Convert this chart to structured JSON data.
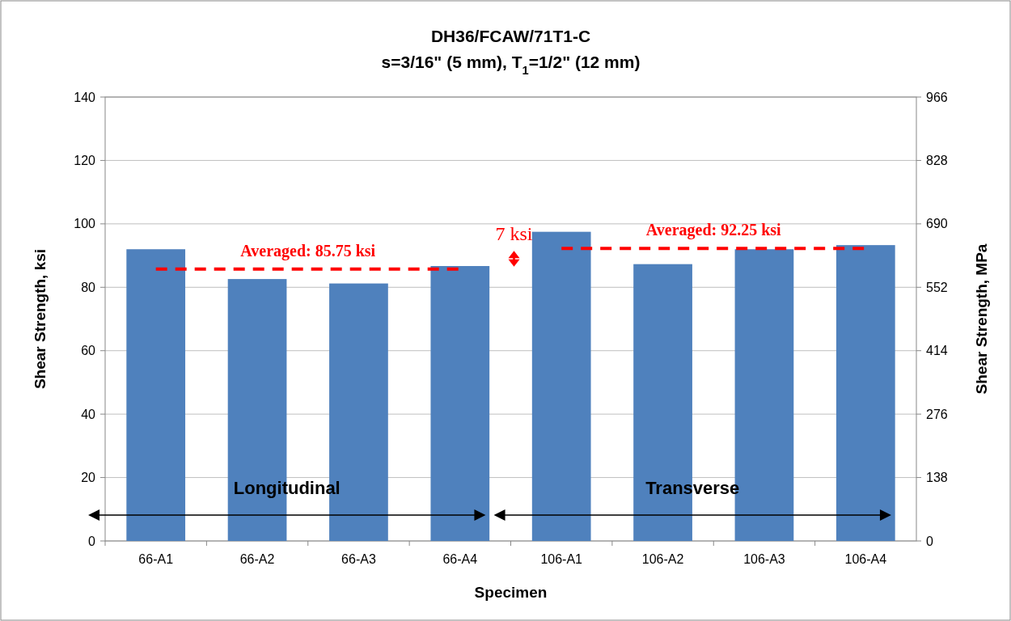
{
  "chart_data": {
    "type": "bar",
    "title": "DH36/FCAW/71T1-C",
    "subtitle": "s=3/16\" (5 mm), T$_{1}$=1/2\" (12 mm)",
    "xlabel": "Specimen",
    "ylabel": "Shear Strength, ksi",
    "y2label": "Shear Strength, MPa",
    "categories": [
      "66-A1",
      "66-A2",
      "66-A3",
      "66-A4",
      "106-A1",
      "106-A2",
      "106-A3",
      "106-A4"
    ],
    "series": [
      {
        "color": "#4f81bd",
        "values": [
          92.0,
          82.6,
          81.2,
          86.7,
          97.5,
          87.3,
          92.0,
          93.3
        ]
      },
      {
        "type": "line",
        "color": "#ff0000",
        "line_style": "dashed",
        "values": [
          85.75,
          85.75,
          85.75,
          85.75,
          null,
          null,
          null,
          null
        ]
      },
      {
        "type": "line",
        "color": "#ff0000",
        "line_style": "dashed",
        "values": [
          null,
          null,
          null,
          null,
          92.25,
          92.25,
          92.25,
          92.25
        ]
      }
    ],
    "ylim": [
      0,
      140
    ],
    "yticks": [
      0,
      20,
      40,
      60,
      80,
      100,
      120,
      140
    ],
    "y2lim": [
      0,
      966
    ],
    "y2ticks": [
      0,
      138,
      276,
      414,
      552,
      690,
      828,
      966
    ],
    "grid": "y",
    "annotations": [
      "Averaged: 85.75 ksi",
      "Averaged: 92.25 ksi",
      "7 ksi",
      "Longitudinal",
      "Transverse"
    ]
  }
}
